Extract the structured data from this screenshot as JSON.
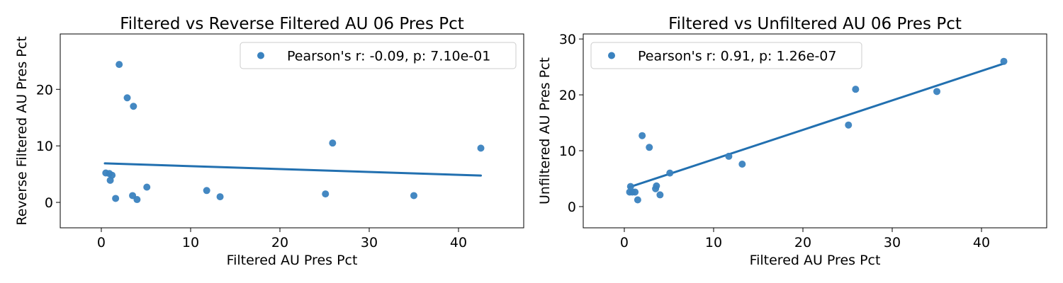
{
  "chart_data": [
    {
      "type": "scatter",
      "title": "Filtered vs Reverse Filtered AU 06 Pres Pct",
      "xlabel": "Filtered AU Pres Pct",
      "ylabel": "Reverse Filtered AU Pres Pct",
      "xlim": [
        -4.6,
        47.3
      ],
      "ylim": [
        -4.5,
        29.8
      ],
      "xticks": [
        0,
        10,
        20,
        30,
        40
      ],
      "yticks": [
        0,
        10,
        20
      ],
      "grid": false,
      "legend_position": "top-right",
      "colors": {
        "point": "#3a82bf",
        "line": "#2270b0"
      },
      "series": [
        {
          "name": "Pearson's r: -0.09, p: 7.10e-01",
          "x": [
            0.5,
            0.9,
            1.0,
            1.2,
            1.6,
            2.0,
            2.9,
            3.5,
            3.6,
            4.0,
            5.1,
            11.8,
            13.3,
            25.1,
            25.9,
            35.0,
            42.5
          ],
          "y": [
            5.2,
            5.1,
            3.9,
            4.8,
            0.7,
            24.4,
            18.5,
            1.2,
            17.0,
            0.5,
            2.7,
            2.1,
            1.0,
            1.5,
            10.5,
            1.2,
            9.6
          ]
        }
      ],
      "regression_line": {
        "x": [
          0.4,
          42.5
        ],
        "y": [
          6.9,
          4.75
        ]
      }
    },
    {
      "type": "scatter",
      "title": "Filtered vs Unfiltered AU 06 Pres Pct",
      "xlabel": "Filtered AU Pres Pct",
      "ylabel": "Unfiltered AU Pres Pct",
      "xlim": [
        -4.6,
        47.3
      ],
      "ylim": [
        -3.8,
        30.9
      ],
      "xticks": [
        0,
        10,
        20,
        30,
        40
      ],
      "yticks": [
        0,
        10,
        20,
        30
      ],
      "grid": false,
      "legend_position": "top-left",
      "colors": {
        "point": "#3a82bf",
        "line": "#2270b0"
      },
      "series": [
        {
          "name": "Pearson's r: 0.91, p: 1.26e-07",
          "x": [
            0.6,
            0.7,
            0.9,
            1.2,
            1.5,
            2.0,
            2.8,
            3.5,
            3.6,
            4.0,
            5.1,
            11.7,
            13.2,
            25.1,
            25.9,
            35.0,
            42.5
          ],
          "y": [
            2.6,
            3.6,
            2.6,
            2.6,
            1.2,
            12.7,
            10.6,
            3.2,
            3.7,
            2.1,
            6.0,
            9.0,
            7.6,
            14.6,
            21.0,
            20.6,
            26.0
          ]
        }
      ],
      "regression_line": {
        "x": [
          0.6,
          42.5
        ],
        "y": [
          3.5,
          25.6
        ]
      }
    }
  ]
}
